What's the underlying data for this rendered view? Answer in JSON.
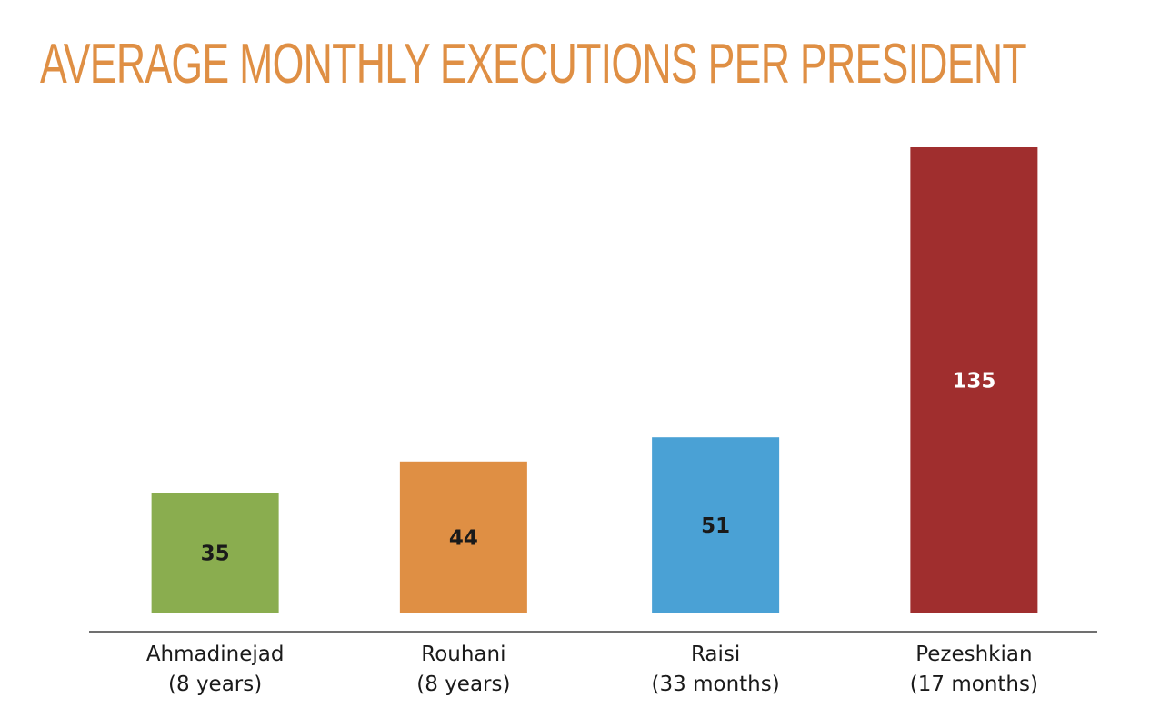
{
  "chart_data": {
    "type": "bar",
    "title": "AVERAGE MONTHLY EXECUTIONS PER PRESIDENT",
    "xlabel": "",
    "ylabel": "",
    "ylim": [
      0,
      135
    ],
    "grid": false,
    "categories": [
      {
        "name": "Ahmadinejad",
        "period": "(8 years)"
      },
      {
        "name": "Rouhani",
        "period": "(8 years)"
      },
      {
        "name": "Raisi",
        "period": "(33 months)"
      },
      {
        "name": "Pezeshkian",
        "period": "(17 months)"
      }
    ],
    "values": [
      35,
      44,
      51,
      135
    ],
    "value_labels": [
      "35",
      "44",
      "51",
      "135"
    ],
    "colors": [
      "#8aad4f",
      "#df8f44",
      "#4aa1d5",
      "#a02e2e"
    ],
    "label_colors": [
      "#1a1a1a",
      "#1a1a1a",
      "#1a1a1a",
      "#ffffff"
    ],
    "title_color": "#df8f44",
    "axis_color": "#707070"
  }
}
